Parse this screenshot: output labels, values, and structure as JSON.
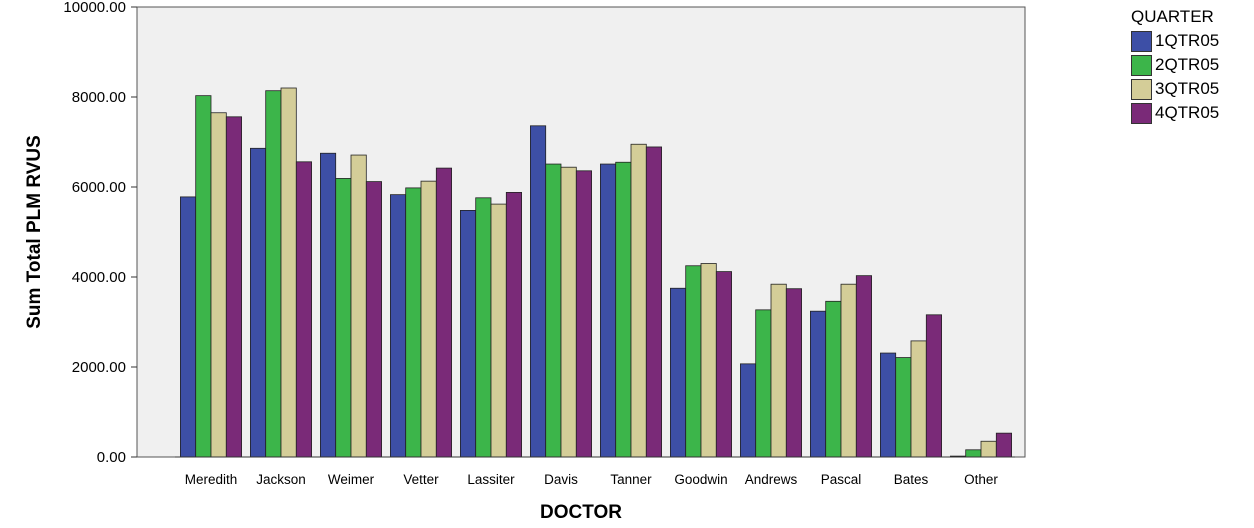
{
  "chart_data": {
    "type": "bar",
    "title": "",
    "xlabel": "DOCTOR",
    "ylabel": "Sum Total PLM RVUS",
    "ylim": [
      0,
      10000
    ],
    "yticks": [
      "0.00",
      "2000.00",
      "4000.00",
      "6000.00",
      "8000.00",
      "10000.00"
    ],
    "categories": [
      "Meredith",
      "Jackson",
      "Weimer",
      "Vetter",
      "Lassiter",
      "Davis",
      "Tanner",
      "Goodwin",
      "Andrews",
      "Pascal",
      "Bates",
      "Other"
    ],
    "legend_title": "QUARTER",
    "legend_position": "top-right",
    "grid": false,
    "series": [
      {
        "name": "1QTR05",
        "color": "#3d4fa6",
        "values": [
          5780,
          6860,
          6750,
          5830,
          5480,
          7360,
          6510,
          3750,
          2070,
          3240,
          2310,
          20
        ]
      },
      {
        "name": "2QTR05",
        "color": "#3cb54a",
        "values": [
          8030,
          8140,
          6190,
          5980,
          5760,
          6510,
          6550,
          4250,
          3270,
          3460,
          2210,
          160
        ]
      },
      {
        "name": "3QTR05",
        "color": "#d4cd98",
        "values": [
          7650,
          8200,
          6710,
          6130,
          5620,
          6440,
          6950,
          4300,
          3840,
          3840,
          2580,
          350
        ]
      },
      {
        "name": "4QTR05",
        "color": "#7a2a78",
        "values": [
          7560,
          6560,
          6120,
          6420,
          5880,
          6360,
          6890,
          4120,
          3740,
          4030,
          3160,
          530
        ]
      }
    ]
  }
}
